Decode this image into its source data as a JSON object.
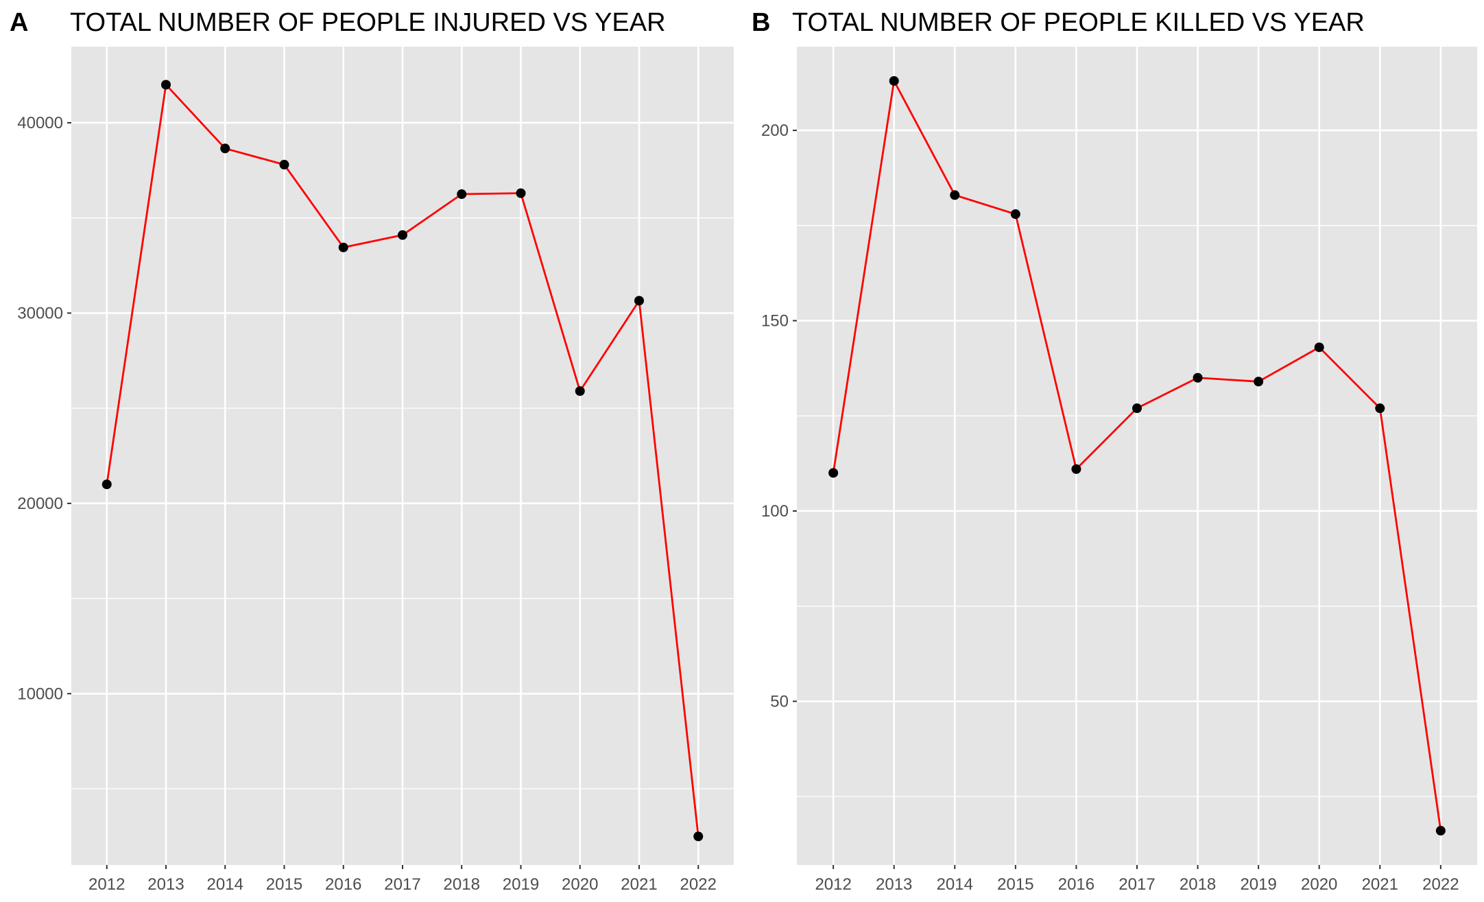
{
  "panels": [
    {
      "letter": "A",
      "title": "TOTAL NUMBER OF PEOPLE INJURED VS YEAR",
      "chart_data": {
        "type": "line",
        "title": "TOTAL NUMBER OF PEOPLE INJURED VS YEAR",
        "xlabel": "",
        "ylabel": "",
        "x": [
          2012,
          2013,
          2014,
          2015,
          2016,
          2017,
          2018,
          2019,
          2020,
          2021,
          2022
        ],
        "values": [
          21000,
          42000,
          38650,
          37800,
          33450,
          34100,
          36250,
          36300,
          25900,
          30650,
          2500
        ],
        "xlim": [
          2011.4,
          2022.6
        ],
        "ylim": [
          1000,
          44000
        ],
        "yticks": [
          10000,
          20000,
          30000,
          40000
        ],
        "ytick_labels": [
          "10000",
          "20000",
          "30000",
          "40000"
        ],
        "yminor": [
          5000,
          15000,
          25000,
          35000
        ],
        "xtick_labels": [
          "2012",
          "2013",
          "2014",
          "2015",
          "2016",
          "2017",
          "2018",
          "2019",
          "2020",
          "2021",
          "2022"
        ],
        "line_color": "#ff0000",
        "point_color": "#000000",
        "panel_bg": "#e5e5e5",
        "grid": true
      }
    },
    {
      "letter": "B",
      "title": "TOTAL NUMBER OF PEOPLE KILLED VS YEAR",
      "chart_data": {
        "type": "line",
        "title": "TOTAL NUMBER OF PEOPLE KILLED VS YEAR",
        "xlabel": "",
        "ylabel": "",
        "x": [
          2012,
          2013,
          2014,
          2015,
          2016,
          2017,
          2018,
          2019,
          2020,
          2021,
          2022
        ],
        "values": [
          110,
          213,
          183,
          178,
          111,
          127,
          135,
          134,
          143,
          127,
          16
        ],
        "xlim": [
          2011.4,
          2022.6
        ],
        "ylim": [
          7,
          222
        ],
        "yticks": [
          50,
          100,
          150,
          200
        ],
        "ytick_labels": [
          "50",
          "100",
          "150",
          "200"
        ],
        "yminor": [
          25,
          75,
          125,
          175
        ],
        "xtick_labels": [
          "2012",
          "2013",
          "2014",
          "2015",
          "2016",
          "2017",
          "2018",
          "2019",
          "2020",
          "2021",
          "2022"
        ],
        "line_color": "#ff0000",
        "point_color": "#000000",
        "panel_bg": "#e5e5e5",
        "grid": true
      }
    }
  ]
}
